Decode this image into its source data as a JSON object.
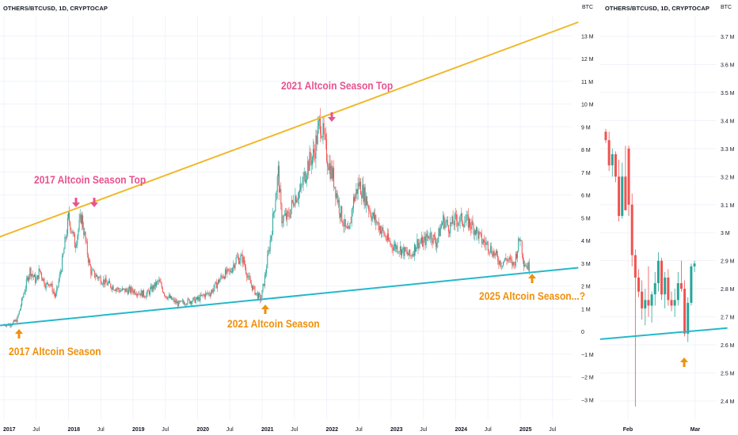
{
  "main": {
    "header": "OTHERS/BTCUSD, 1D, CRYPTOCAP",
    "currency": "BTC",
    "yticks": [
      "13 M",
      "12 M",
      "11 M",
      "10 M",
      "9 M",
      "8 M",
      "7 M",
      "6 M",
      "5 M",
      "4 M",
      "3 M",
      "2 M",
      "1 M",
      "0",
      "−1 M",
      "−2 M",
      "−3 M"
    ],
    "ytick_values": [
      13,
      12,
      11,
      10,
      9,
      8,
      7,
      6,
      5,
      4,
      3,
      2,
      1,
      0,
      -1,
      -2,
      -3
    ],
    "xticks": [
      "2017",
      "Jul",
      "2018",
      "Jul",
      "2019",
      "Jul",
      "2020",
      "Jul",
      "2021",
      "Jul",
      "2022",
      "Jul",
      "2023",
      "Jul",
      "2024",
      "Jul",
      "2025",
      "Jul"
    ],
    "annotations": {
      "top_2017": "2017 Altcoin Season Top",
      "top_2021": "2021 Altcoin Season Top",
      "season_2017": "2017 Altcoin Season",
      "season_2021": "2021 Altcoin Season",
      "season_2025": "2025 Altcoin Season...?"
    }
  },
  "zoom": {
    "header": "OTHERS/BTCUSD, 1D, CRYPTOCAP",
    "currency": "BTC",
    "yticks": [
      "3.7 M",
      "3.6 M",
      "3.5 M",
      "3.4 M",
      "3.3 M",
      "3.2 M",
      "3.1 M",
      "3 M",
      "2.9 M",
      "2.8 M",
      "2.7 M",
      "2.6 M",
      "2.5 M",
      "2.4 M"
    ],
    "ytick_values": [
      3.7,
      3.6,
      3.5,
      3.4,
      3.3,
      3.2,
      3.1,
      3.0,
      2.9,
      2.8,
      2.7,
      2.6,
      2.5,
      2.4
    ],
    "xticks": [
      "Feb",
      "Mar"
    ]
  },
  "colors": {
    "up": "#26a69a",
    "down": "#ef5350",
    "resistance": "#f0b92c",
    "support": "#25b8c9",
    "pink": "#e8538f",
    "orange": "#f0900c"
  },
  "chart_data": [
    {
      "type": "line",
      "title": "OTHERS/BTCUSD, 1D, CRYPTOCAP",
      "ylabel": "BTC",
      "ylim": [
        -3.2,
        13.8
      ],
      "x_unit": "year",
      "series": [
        {
          "x": [
            2017.0,
            2017.1,
            2017.2,
            2017.25,
            2017.3,
            2017.4,
            2017.5,
            2017.55,
            2017.65,
            2017.7,
            2017.8,
            2017.9,
            2018.0,
            2018.05,
            2018.1,
            2018.2,
            2018.25,
            2018.3,
            2018.35,
            2018.45,
            2018.6,
            2018.8,
            2019.0,
            2019.2,
            2019.4,
            2019.5,
            2019.6,
            2019.7,
            2019.8,
            2020.0,
            2020.1,
            2020.2,
            2020.3,
            2020.4,
            2020.5,
            2020.6,
            2020.7,
            2020.8,
            2020.9,
            2020.98,
            2021.05,
            2021.15,
            2021.25,
            2021.3,
            2021.4,
            2021.5,
            2021.6,
            2021.7,
            2021.8,
            2021.9,
            2022.0,
            2022.05,
            2022.1,
            2022.2,
            2022.3,
            2022.35,
            2022.4,
            2022.5,
            2022.6,
            2022.7,
            2022.8,
            2022.9,
            2023.0,
            2023.1,
            2023.2,
            2023.3,
            2023.4,
            2023.5,
            2023.6,
            2023.7,
            2023.8,
            2023.9,
            2024.0,
            2024.1,
            2024.2,
            2024.3,
            2024.4,
            2024.5,
            2024.6,
            2024.7,
            2024.8,
            2024.9,
            2025.0,
            2025.05,
            2025.1,
            2025.15
          ],
          "y": [
            0.3,
            0.3,
            0.5,
            1.0,
            1.6,
            2.7,
            2.2,
            2.7,
            2.0,
            2.2,
            1.5,
            3.0,
            5.0,
            4.5,
            3.8,
            5.1,
            4.2,
            3.3,
            2.6,
            2.4,
            2.1,
            1.8,
            1.8,
            1.6,
            2.2,
            1.6,
            1.4,
            1.2,
            1.3,
            1.4,
            1.6,
            1.7,
            2.1,
            2.5,
            2.6,
            3.2,
            3.2,
            2.2,
            1.7,
            1.4,
            2.5,
            4.5,
            7.0,
            5.0,
            5.0,
            5.9,
            6.2,
            7.3,
            7.8,
            9.3,
            7.8,
            7.2,
            6.8,
            5.4,
            4.4,
            4.3,
            5.6,
            6.5,
            5.9,
            5.1,
            4.7,
            4.2,
            3.8,
            3.7,
            3.5,
            3.3,
            3.9,
            3.9,
            4.3,
            3.9,
            4.9,
            4.6,
            4.9,
            4.9,
            4.8,
            4.5,
            4.0,
            3.8,
            3.4,
            3.0,
            3.2,
            2.9,
            4.2,
            3.1,
            2.9,
            2.8
          ]
        }
      ],
      "trendlines": [
        {
          "name": "resistance",
          "from": [
            2016.5,
            3.7
          ],
          "to": [
            2025.9,
            13.6
          ]
        },
        {
          "name": "support",
          "from": [
            2016.9,
            0.25
          ],
          "to": [
            2025.9,
            2.8
          ]
        }
      ]
    },
    {
      "type": "candlestick",
      "title": "OTHERS/BTCUSD, 1D, CRYPTOCAP",
      "ylabel": "BTC",
      "ylim": [
        2.37,
        3.78
      ],
      "x_unit": "day index",
      "candles": [
        {
          "o": 3.36,
          "h": 3.37,
          "l": 3.32,
          "c": 3.33
        },
        {
          "o": 3.33,
          "h": 3.36,
          "l": 3.22,
          "c": 3.24
        },
        {
          "o": 3.24,
          "h": 3.3,
          "l": 3.2,
          "c": 3.28
        },
        {
          "o": 3.28,
          "h": 3.29,
          "l": 3.18,
          "c": 3.2
        },
        {
          "o": 3.2,
          "h": 3.26,
          "l": 3.04,
          "c": 3.06
        },
        {
          "o": 3.06,
          "h": 3.25,
          "l": 3.05,
          "c": 3.2
        },
        {
          "o": 3.2,
          "h": 3.31,
          "l": 3.08,
          "c": 3.08
        },
        {
          "o": 3.3,
          "h": 3.31,
          "l": 3.06,
          "c": 3.1
        },
        {
          "o": 3.1,
          "h": 3.14,
          "l": 2.88,
          "c": 2.92
        },
        {
          "o": 2.92,
          "h": 2.94,
          "l": 2.38,
          "c": 2.84
        },
        {
          "o": 2.84,
          "h": 2.87,
          "l": 2.77,
          "c": 2.79
        },
        {
          "o": 2.79,
          "h": 2.83,
          "l": 2.69,
          "c": 2.73
        },
        {
          "o": 2.73,
          "h": 2.8,
          "l": 2.67,
          "c": 2.76
        },
        {
          "o": 2.76,
          "h": 2.88,
          "l": 2.7,
          "c": 2.74
        },
        {
          "o": 2.74,
          "h": 2.79,
          "l": 2.68,
          "c": 2.78
        },
        {
          "o": 2.78,
          "h": 2.86,
          "l": 2.74,
          "c": 2.82
        },
        {
          "o": 2.82,
          "h": 2.93,
          "l": 2.79,
          "c": 2.9
        },
        {
          "o": 2.9,
          "h": 2.91,
          "l": 2.76,
          "c": 2.78
        },
        {
          "o": 2.78,
          "h": 2.86,
          "l": 2.73,
          "c": 2.84
        },
        {
          "o": 2.84,
          "h": 2.87,
          "l": 2.74,
          "c": 2.76
        },
        {
          "o": 2.76,
          "h": 2.79,
          "l": 2.72,
          "c": 2.74
        },
        {
          "o": 2.74,
          "h": 2.8,
          "l": 2.7,
          "c": 2.76
        },
        {
          "o": 2.76,
          "h": 2.86,
          "l": 2.74,
          "c": 2.82
        },
        {
          "o": 2.82,
          "h": 2.9,
          "l": 2.79,
          "c": 2.8
        },
        {
          "o": 2.8,
          "h": 2.83,
          "l": 2.63,
          "c": 2.64
        },
        {
          "o": 2.64,
          "h": 2.77,
          "l": 2.61,
          "c": 2.75
        },
        {
          "o": 2.75,
          "h": 2.89,
          "l": 2.74,
          "c": 2.88
        },
        {
          "o": 2.88,
          "h": 2.9,
          "l": 2.86,
          "c": 2.89
        }
      ],
      "trendlines": [
        {
          "name": "support",
          "from": [
            -2,
            2.62
          ],
          "to": [
            37,
            2.66
          ]
        }
      ]
    }
  ]
}
